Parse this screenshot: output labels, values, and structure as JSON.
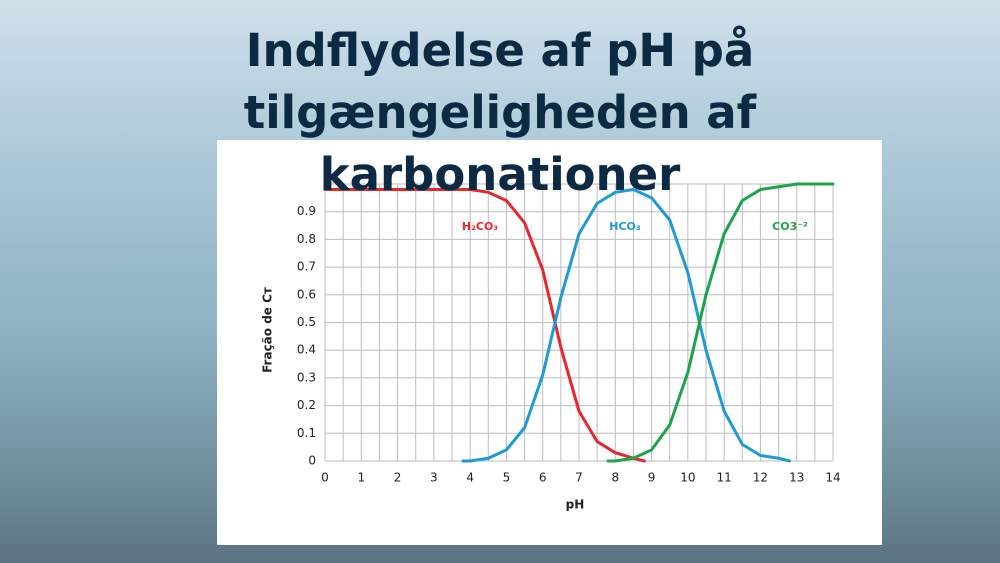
{
  "chart_data": {
    "type": "line",
    "title": "Indflydelse af pH på tilgængeligheden af karbonationer",
    "x_label": "pH",
    "y_label": "Fração de Cᴛ",
    "xlim": [
      0,
      14
    ],
    "ylim": [
      0,
      1
    ],
    "xticks": [
      0,
      1,
      2,
      3,
      4,
      5,
      6,
      7,
      8,
      9,
      10,
      11,
      12,
      13,
      14
    ],
    "yticks": [
      0,
      0.1,
      0.2,
      0.3,
      0.4,
      0.5,
      0.6,
      0.7,
      0.8,
      0.9
    ],
    "grid": true,
    "series": [
      {
        "name": "H₂CO₃",
        "color": "#e8262b",
        "x": [
          0,
          0.5,
          1,
          1.5,
          2,
          2.5,
          3,
          3.5,
          4,
          4.5,
          5,
          5.5,
          6,
          6.5,
          7,
          7.5,
          8,
          8.5,
          8.8
        ],
        "values": [
          0.98,
          0.98,
          0.98,
          0.98,
          0.98,
          0.98,
          0.98,
          0.98,
          0.98,
          0.97,
          0.94,
          0.86,
          0.69,
          0.41,
          0.18,
          0.07,
          0.03,
          0.01,
          0.0
        ]
      },
      {
        "name": "HCO₃",
        "color": "#1e9ad6",
        "x": [
          3.8,
          4,
          4.5,
          5,
          5.5,
          6,
          6.5,
          7,
          7.5,
          8,
          8.5,
          9,
          9.5,
          10,
          10.5,
          11,
          11.5,
          12,
          12.5,
          12.8
        ],
        "values": [
          0.0,
          0.0,
          0.01,
          0.04,
          0.12,
          0.31,
          0.59,
          0.82,
          0.93,
          0.97,
          0.98,
          0.95,
          0.87,
          0.68,
          0.4,
          0.18,
          0.06,
          0.02,
          0.01,
          0.0
        ]
      },
      {
        "name": "CO3⁻²",
        "color": "#1fa34a",
        "x": [
          7.8,
          8,
          8.5,
          9,
          9.5,
          10,
          10.5,
          11,
          11.5,
          12,
          12.5,
          13,
          13.5,
          14
        ],
        "values": [
          0.0,
          0.0,
          0.01,
          0.04,
          0.13,
          0.32,
          0.6,
          0.82,
          0.94,
          0.98,
          0.99,
          1.0,
          1.0,
          1.0
        ]
      }
    ]
  }
}
